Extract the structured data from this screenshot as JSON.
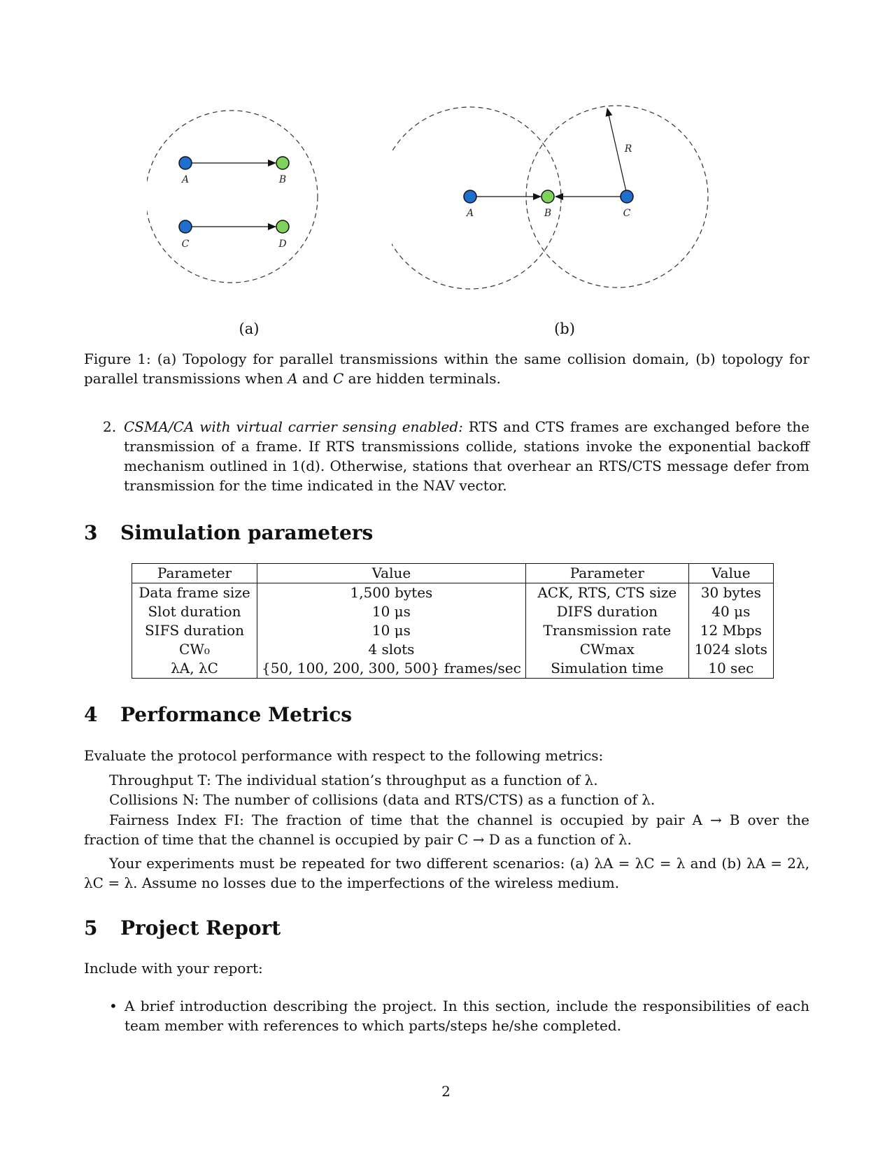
{
  "figure": {
    "panel_a": {
      "nodes": [
        {
          "label": "A",
          "color": "#1f6fd0"
        },
        {
          "label": "B",
          "color": "#7fd25a"
        },
        {
          "label": "C",
          "color": "#1f6fd0"
        },
        {
          "label": "D",
          "color": "#7fd25a"
        }
      ],
      "subcaption": "(a)"
    },
    "panel_b": {
      "nodes": [
        {
          "label": "A",
          "color": "#1f6fd0"
        },
        {
          "label": "B",
          "color": "#7fd25a"
        },
        {
          "label": "C",
          "color": "#1f6fd0"
        }
      ],
      "radius_label": "R",
      "subcaption": "(b)"
    },
    "caption_label": "Figure 1:",
    "caption_text_1": "(a) Topology for parallel transmissions within the same collision domain, (b) topology for parallel transmissions when",
    "caption_var_a": "A",
    "caption_and": "and",
    "caption_var_c": "C",
    "caption_text_2": "are hidden terminals."
  },
  "list_item_2": {
    "number": "2.",
    "title": "CSMA/CA with virtual carrier sensing enabled:",
    "text": "RTS and CTS frames are exchanged before the transmission of a frame. If RTS transmissions collide, stations invoke the exponential backoff mechanism outlined in 1(d). Otherwise, stations that overhear an RTS/CTS message defer from transmission for the time indicated in the NAV vector."
  },
  "section3": {
    "number": "3",
    "title": "Simulation parameters",
    "table": {
      "headers": [
        "Parameter",
        "Value",
        "Parameter",
        "Value"
      ],
      "rows": [
        [
          "Data frame size",
          "1,500 bytes",
          "ACK, RTS, CTS size",
          "30 bytes"
        ],
        [
          "Slot duration",
          "10 μs",
          "DIFS duration",
          "40 μs"
        ],
        [
          "SIFS duration",
          "10 μs",
          "Transmission rate",
          "12 Mbps"
        ],
        [
          "CW₀",
          "4 slots",
          "CWmax",
          "1024 slots"
        ],
        [
          "λA, λC",
          "{50, 100, 200, 300, 500} frames/sec",
          "Simulation time",
          "10 sec"
        ]
      ]
    }
  },
  "section4": {
    "number": "4",
    "title": "Performance Metrics",
    "intro": "Evaluate the protocol performance with respect to the following metrics:",
    "throughput": "Throughput T: The individual station’s throughput as a function of λ.",
    "collisions": "Collisions N: The number of collisions (data and RTS/CTS) as a function of λ.",
    "fairness": "Fairness Index FI: The fraction of time that the channel is occupied by pair A → B over the fraction of time that the channel is occupied by pair C → D as a function of λ.",
    "scenarios": "Your experiments must be repeated for two different scenarios: (a) λA = λC = λ and (b) λA = 2λ, λC = λ. Assume no losses due to the imperfections of the wireless medium."
  },
  "section5": {
    "number": "5",
    "title": "Project Report",
    "intro": "Include with your report:",
    "bullet": "A brief introduction describing the project. In this section, include the responsibilities of each team member with references to which parts/steps he/she completed."
  },
  "page_number": "2"
}
